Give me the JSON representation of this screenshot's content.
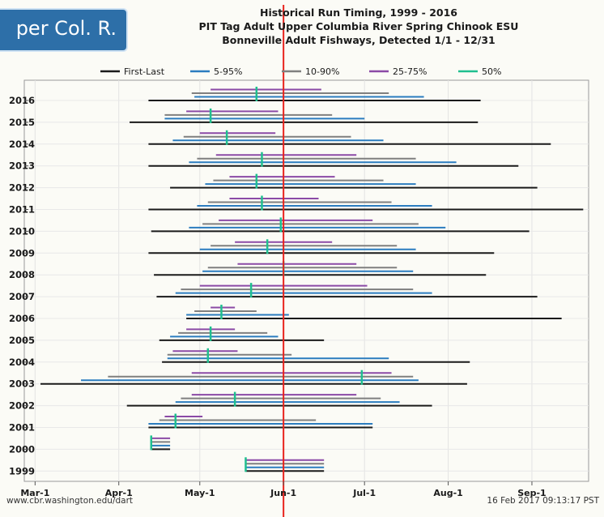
{
  "badge": {
    "text": "per Col. R."
  },
  "footer": {
    "source": "www.cbr.washington.edu/dart",
    "timestamp": "16 Feb 2017 09:13:17 PST"
  },
  "chart_data": {
    "type": "range-bar",
    "title": "Historical Run Timing, 1999 - 2016",
    "subtitle": "PIT Tag Adult Upper Columbia River Spring Chinook ESU",
    "subtitle2": "Bonneville Adult Fishways, Detected 1/1 - 12/31",
    "x_axis": {
      "type": "date",
      "range": [
        "02-25",
        "09-22"
      ],
      "ticks": [
        {
          "date": "03-01",
          "label": "Mar-1"
        },
        {
          "date": "04-01",
          "label": "Apr-1"
        },
        {
          "date": "05-01",
          "label": "May-1"
        },
        {
          "date": "06-01",
          "label": "Jun-1"
        },
        {
          "date": "07-01",
          "label": "Jul-1"
        },
        {
          "date": "08-01",
          "label": "Aug-1"
        },
        {
          "date": "09-01",
          "label": "Sep-1"
        }
      ]
    },
    "reference_line": {
      "date": "06-01",
      "color": "#e8221c"
    },
    "legend": {
      "placement": "top",
      "items": [
        {
          "name": "First-Last",
          "color": "#1a1a1a"
        },
        {
          "name": "5-95%",
          "color": "#2b7cbf"
        },
        {
          "name": "10-90%",
          "color": "#7f7f7f"
        },
        {
          "name": "25-75%",
          "color": "#8b4aa6"
        },
        {
          "name": "50%",
          "color": "#1fbf8f"
        }
      ]
    },
    "series_colors": {
      "first_last": "#1a1a1a",
      "p5_95": "#2b7cbf",
      "p10_90": "#7f7f7f",
      "p25_75": "#8b4aa6",
      "p50": "#1fbf8f"
    },
    "rows": [
      {
        "year": "2016",
        "first": "04-12",
        "last": "08-13",
        "p5": "04-29",
        "p95": "07-23",
        "p10": "04-28",
        "p90": "07-10",
        "p25": "05-05",
        "p75": "06-15",
        "p50": "05-22"
      },
      {
        "year": "2015",
        "first": "04-05",
        "last": "08-12",
        "p5": "04-18",
        "p95": "07-01",
        "p10": "04-18",
        "p90": "06-19",
        "p25": "04-26",
        "p75": "05-30",
        "p50": "05-05"
      },
      {
        "year": "2014",
        "first": "04-12",
        "last": "09-08",
        "p5": "04-21",
        "p95": "07-08",
        "p10": "04-25",
        "p90": "06-26",
        "p25": "05-01",
        "p75": "05-29",
        "p50": "05-11"
      },
      {
        "year": "2013",
        "first": "04-12",
        "last": "08-27",
        "p5": "04-27",
        "p95": "08-04",
        "p10": "04-30",
        "p90": "07-20",
        "p25": "05-07",
        "p75": "06-28",
        "p50": "05-24"
      },
      {
        "year": "2012",
        "first": "04-20",
        "last": "09-03",
        "p5": "05-03",
        "p95": "07-20",
        "p10": "05-06",
        "p90": "07-08",
        "p25": "05-12",
        "p75": "06-20",
        "p50": "05-22"
      },
      {
        "year": "2011",
        "first": "04-12",
        "last": "09-20",
        "p5": "04-30",
        "p95": "07-26",
        "p10": "05-04",
        "p90": "07-11",
        "p25": "05-12",
        "p75": "06-14",
        "p50": "05-24"
      },
      {
        "year": "2010",
        "first": "04-13",
        "last": "08-31",
        "p5": "04-27",
        "p95": "07-31",
        "p10": "05-02",
        "p90": "07-21",
        "p25": "05-08",
        "p75": "07-04",
        "p50": "05-31"
      },
      {
        "year": "2009",
        "first": "04-12",
        "last": "08-18",
        "p5": "05-01",
        "p95": "07-20",
        "p10": "05-05",
        "p90": "07-13",
        "p25": "05-14",
        "p75": "06-19",
        "p50": "05-26"
      },
      {
        "year": "2008",
        "first": "04-14",
        "last": "08-15",
        "p5": "05-02",
        "p95": "07-19",
        "p10": "05-04",
        "p90": "07-13",
        "p25": "05-15",
        "p75": "06-28",
        "p50": "06-01"
      },
      {
        "year": "2007",
        "first": "04-15",
        "last": "09-03",
        "p5": "04-22",
        "p95": "07-26",
        "p10": "04-24",
        "p90": "07-19",
        "p25": "05-01",
        "p75": "07-02",
        "p50": "05-20"
      },
      {
        "year": "2006",
        "first": "04-26",
        "last": "09-12",
        "p5": "04-26",
        "p95": "06-03",
        "p10": "04-29",
        "p90": "05-22",
        "p25": "05-05",
        "p75": "05-14",
        "p50": "05-09"
      },
      {
        "year": "2005",
        "first": "04-16",
        "last": "06-16",
        "p5": "04-20",
        "p95": "05-30",
        "p10": "04-23",
        "p90": "05-26",
        "p25": "04-26",
        "p75": "05-14",
        "p50": "05-05"
      },
      {
        "year": "2004",
        "first": "04-17",
        "last": "08-09",
        "p5": "04-19",
        "p95": "07-10",
        "p10": "04-19",
        "p90": "06-04",
        "p25": "04-21",
        "p75": "05-15",
        "p50": "05-04"
      },
      {
        "year": "2003",
        "first": "03-03",
        "last": "08-08",
        "p5": "03-18",
        "p95": "07-21",
        "p10": "03-28",
        "p90": "07-19",
        "p25": "04-28",
        "p75": "07-11",
        "p50": "06-30"
      },
      {
        "year": "2002",
        "first": "04-04",
        "last": "07-26",
        "p5": "04-22",
        "p95": "07-14",
        "p10": "04-24",
        "p90": "07-07",
        "p25": "04-28",
        "p75": "06-28",
        "p50": "05-14"
      },
      {
        "year": "2001",
        "first": "04-12",
        "last": "07-04",
        "p5": "04-12",
        "p95": "07-04",
        "p10": "04-16",
        "p90": "06-13",
        "p25": "04-18",
        "p75": "05-02",
        "p50": "04-22"
      },
      {
        "year": "2000",
        "first": "04-13",
        "last": "04-20",
        "p5": "04-13",
        "p95": "04-20",
        "p10": "04-13",
        "p90": "04-20",
        "p25": "04-13",
        "p75": "04-20",
        "p50": "04-13"
      },
      {
        "year": "1999",
        "first": "05-18",
        "last": "06-16",
        "p5": "05-18",
        "p95": "06-16",
        "p10": "05-18",
        "p90": "06-16",
        "p25": "05-18",
        "p75": "06-16",
        "p50": "05-18"
      }
    ]
  }
}
